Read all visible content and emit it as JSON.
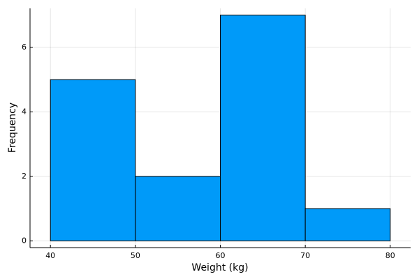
{
  "chart_data": {
    "type": "histogram",
    "x_label": "Weight (kg)",
    "y_label": "Frequency",
    "bins": [
      40,
      50,
      60,
      70,
      80
    ],
    "values": [
      5,
      2,
      7,
      1
    ],
    "color": "#009af9",
    "xlim": [
      37.6,
      82.4
    ],
    "ylim": [
      -0.21,
      7.21
    ],
    "xticks": [
      40,
      50,
      60,
      70,
      80
    ],
    "yticks": [
      0,
      2,
      4,
      6
    ],
    "grid": true
  }
}
